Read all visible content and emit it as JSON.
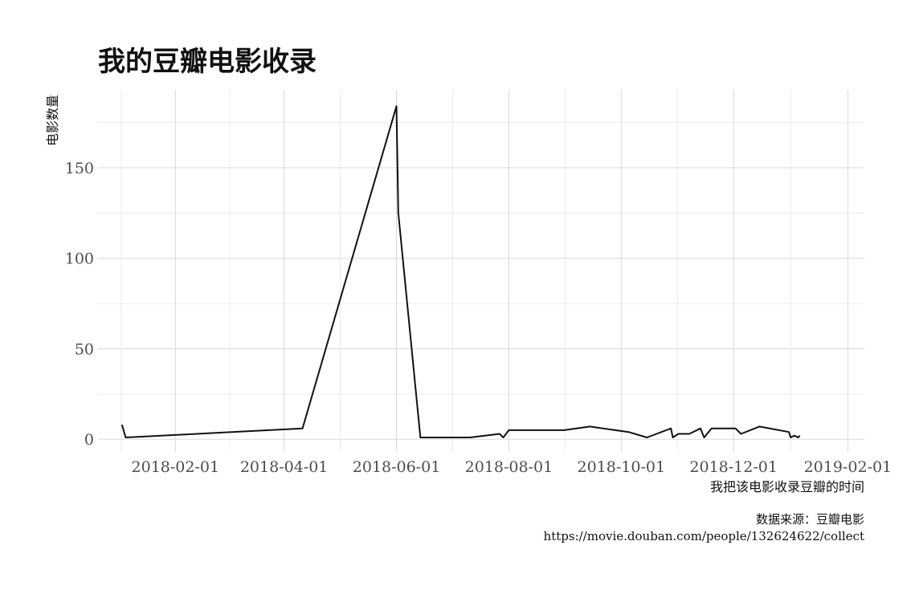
{
  "chart_data": {
    "type": "line",
    "title": "我的豆瓣电影收录",
    "xlabel": "我把该电影收录豆瓣的时间",
    "ylabel": "电影数量",
    "caption": [
      "数据来源：豆瓣电影",
      "https://movie.douban.com/people/132624622/collect"
    ],
    "xlim": [
      "2017-12-21",
      "2019-02-10"
    ],
    "ylim": [
      -7,
      193
    ],
    "x_ticks": [
      "2018-02-01",
      "2018-04-01",
      "2018-06-01",
      "2018-08-01",
      "2018-10-01",
      "2018-12-01",
      "2019-02-01"
    ],
    "y_ticks": [
      0,
      50,
      100,
      150
    ],
    "grid": true,
    "series": [
      {
        "x": [
          "2018-01-03",
          "2018-01-05",
          "2018-04-11",
          "2018-06-01",
          "2018-06-02",
          "2018-06-14",
          "2018-07-11",
          "2018-07-27",
          "2018-07-29",
          "2018-08-01",
          "2018-08-31",
          "2018-09-14",
          "2018-10-05",
          "2018-10-15",
          "2018-10-28",
          "2018-10-29",
          "2018-11-01",
          "2018-11-07",
          "2018-11-13",
          "2018-11-15",
          "2018-11-19",
          "2018-12-02",
          "2018-12-05",
          "2018-12-15",
          "2018-12-31",
          "2019-01-01",
          "2019-01-03",
          "2019-01-05",
          "2019-01-06"
        ],
        "y": [
          8,
          1,
          6,
          184,
          125,
          1,
          1,
          3,
          1,
          5,
          5,
          7,
          4,
          1,
          6,
          1,
          3,
          3,
          6,
          1,
          6,
          6,
          3,
          7,
          4,
          1,
          2,
          1,
          2
        ]
      }
    ]
  }
}
